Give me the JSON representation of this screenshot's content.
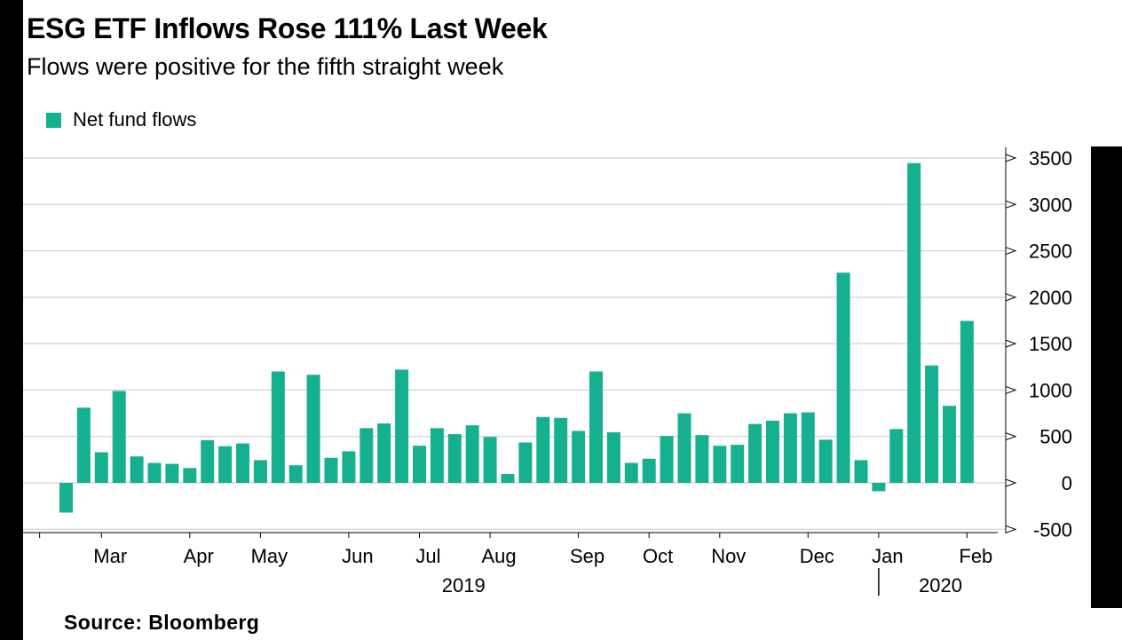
{
  "header": {
    "title": "ESG ETF Inflows Rose 111% Last Week",
    "subtitle": "Flows were positive for the fifth straight week"
  },
  "footer": {
    "source": "Source:  Bloomberg"
  },
  "colors": {
    "bar": "#14b08f",
    "grid": "#c8c8c8",
    "axis": "#000000"
  },
  "chart_data": {
    "type": "bar",
    "title": "ESG ETF Inflows Rose 111% Last Week",
    "subtitle": "Flows were positive for the fifth straight week",
    "xlabel": "",
    "ylabel": "",
    "ylim": [
      -500,
      3600
    ],
    "y_axis_side": "right",
    "yticks": [
      3500,
      3000,
      2500,
      2000,
      1500,
      1000,
      500,
      0,
      -500
    ],
    "ytick_labels": [
      "3500",
      "3000",
      "2500",
      "2000",
      "1500",
      "1000",
      "500",
      "0",
      "-500"
    ],
    "grid": true,
    "legend": {
      "position": "top-left",
      "entries": [
        "Net fund flows"
      ]
    },
    "series": [
      {
        "name": "Net fund flows",
        "values": [
          -320,
          810,
          330,
          990,
          285,
          215,
          205,
          160,
          460,
          395,
          425,
          245,
          1200,
          190,
          1165,
          270,
          340,
          590,
          640,
          1220,
          400,
          590,
          525,
          620,
          495,
          95,
          435,
          710,
          700,
          560,
          1200,
          545,
          215,
          260,
          505,
          750,
          515,
          400,
          410,
          635,
          670,
          750,
          760,
          465,
          2265,
          245,
          -90,
          580,
          3445,
          1265,
          830,
          1745
        ]
      }
    ],
    "x_month_labels": [
      {
        "label": "Mar",
        "week": 2.5
      },
      {
        "label": "Apr",
        "week": 7.5
      },
      {
        "label": "May",
        "week": 11.5
      },
      {
        "label": "Jun",
        "week": 16.5
      },
      {
        "label": "Jul",
        "week": 20.5
      },
      {
        "label": "Aug",
        "week": 24.5
      },
      {
        "label": "Sep",
        "week": 29.5
      },
      {
        "label": "Oct",
        "week": 33.5
      },
      {
        "label": "Nov",
        "week": 37.5
      },
      {
        "label": "Dec",
        "week": 42.5
      },
      {
        "label": "Jan",
        "week": 46.5
      },
      {
        "label": "Feb",
        "week": 51.5
      }
    ],
    "x_month_tick_weeks": [
      -1.5,
      2,
      7,
      11,
      16,
      20,
      24,
      29,
      33,
      37,
      42,
      46,
      51
    ],
    "x_year_labels": [
      {
        "label": "2019",
        "week": 22.5
      },
      {
        "label": "2020",
        "week": 49.5
      }
    ],
    "x_year_boundary_week": 46
  }
}
